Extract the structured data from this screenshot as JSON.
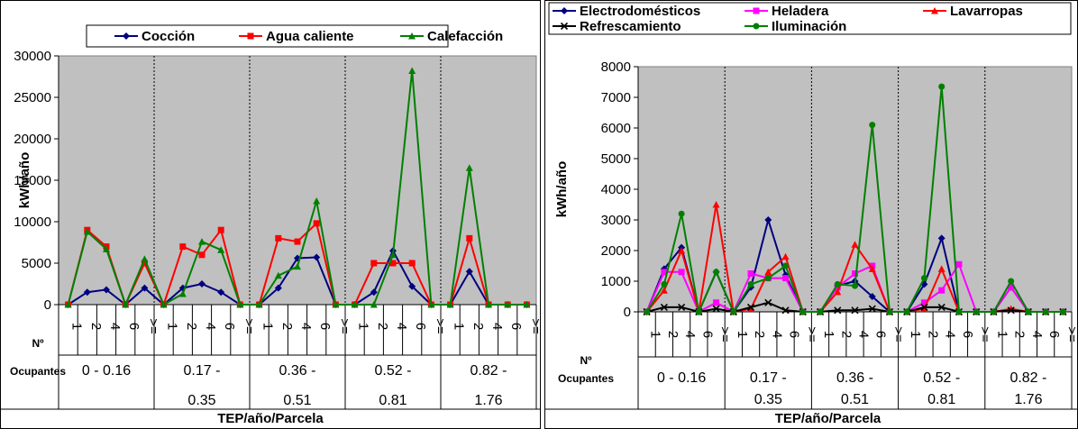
{
  "chart_data": [
    {
      "type": "line",
      "title": "",
      "xlabel": "TEP/año/Parcela",
      "ylabel": "kWh/año",
      "ylim": [
        0,
        30000
      ],
      "yticks": [
        0,
        5000,
        10000,
        15000,
        20000,
        25000,
        30000
      ],
      "legend_position": "top",
      "grid": false,
      "row_header_label_line1": "Nº",
      "row_header_label_line2": "Ocupantes",
      "categories": [
        "1",
        "2",
        "4",
        "6",
        ">=",
        "1",
        "2",
        "4",
        "6",
        ">=",
        "1",
        "2",
        "4",
        "6",
        ">=",
        "1",
        "2",
        "4",
        "6",
        ">=",
        "1",
        "2",
        "4",
        "6",
        ">="
      ],
      "groups": [
        {
          "label_line1": "0 - 0.16",
          "label_line2": ""
        },
        {
          "label_line1": "0.17 -",
          "label_line2": "0.35"
        },
        {
          "label_line1": "0.36 -",
          "label_line2": "0.51"
        },
        {
          "label_line1": "0.52 -",
          "label_line2": "0.81"
        },
        {
          "label_line1": "0.82 -",
          "label_line2": "1.76"
        }
      ],
      "series": [
        {
          "name": "Cocción",
          "color": "#000080",
          "marker": "diamond",
          "values": [
            0,
            1500,
            1800,
            0,
            2000,
            0,
            2000,
            2500,
            1500,
            0,
            0,
            2000,
            5600,
            5700,
            0,
            0,
            1500,
            6500,
            2200,
            0,
            0,
            4000,
            0,
            0,
            0
          ]
        },
        {
          "name": "Agua caliente",
          "color": "#ff0000",
          "marker": "square",
          "values": [
            0,
            9000,
            7000,
            0,
            5000,
            0,
            7000,
            6000,
            9000,
            0,
            0,
            8000,
            7600,
            9800,
            0,
            0,
            5000,
            5000,
            5000,
            0,
            0,
            8000,
            0,
            0,
            0
          ]
        },
        {
          "name": "Calefacción",
          "color": "#008000",
          "marker": "triangle",
          "values": [
            0,
            8800,
            6700,
            0,
            5500,
            0,
            1300,
            7600,
            6600,
            0,
            0,
            3500,
            4600,
            12500,
            0,
            0,
            0,
            6000,
            28200,
            0,
            0,
            16500,
            0,
            0,
            0
          ]
        }
      ]
    },
    {
      "type": "line",
      "title": "",
      "xlabel": "TEP/año/Parcela",
      "ylabel": "kWh/año",
      "ylim": [
        0,
        8000
      ],
      "yticks": [
        0,
        1000,
        2000,
        3000,
        4000,
        5000,
        6000,
        7000,
        8000
      ],
      "legend_position": "top",
      "grid": false,
      "row_header_label_line1": "Nº",
      "row_header_label_line2": "Ocupantes",
      "categories": [
        "1",
        "2",
        "4",
        "6",
        ">=",
        "1",
        "2",
        "4",
        "6",
        ">=",
        "1",
        "2",
        "4",
        "6",
        ">=",
        "1",
        "2",
        "4",
        "6",
        ">=",
        "1",
        "2",
        "4",
        "6",
        ">="
      ],
      "groups": [
        {
          "label_line1": "0 - 0.16",
          "label_line2": ""
        },
        {
          "label_line1": "0.17 -",
          "label_line2": "0.35"
        },
        {
          "label_line1": "0.36 -",
          "label_line2": "0.51"
        },
        {
          "label_line1": "0.52 -",
          "label_line2": "0.81"
        },
        {
          "label_line1": "0.82 -",
          "label_line2": "1.76"
        }
      ],
      "series": [
        {
          "name": "Electrodomésticos",
          "color": "#000080",
          "marker": "diamond",
          "values": [
            0,
            1400,
            2100,
            0,
            1300,
            0,
            800,
            3000,
            1200,
            0,
            0,
            850,
            1000,
            500,
            0,
            0,
            900,
            2400,
            0,
            0,
            0,
            800,
            0,
            0,
            0
          ]
        },
        {
          "name": "Heladera",
          "color": "#ff00ff",
          "marker": "square",
          "values": [
            0,
            1300,
            1300,
            0,
            300,
            0,
            1250,
            1100,
            1100,
            0,
            0,
            800,
            1250,
            1500,
            0,
            0,
            300,
            700,
            1550,
            0,
            0,
            800,
            0,
            0,
            0
          ]
        },
        {
          "name": "Lavarropas",
          "color": "#ff0000",
          "marker": "triangle",
          "values": [
            0,
            700,
            2000,
            0,
            3500,
            0,
            100,
            1300,
            1800,
            0,
            0,
            650,
            2200,
            1400,
            0,
            0,
            100,
            1400,
            0,
            0,
            0,
            100,
            0,
            0,
            0
          ]
        },
        {
          "name": "Refrescamiento",
          "color": "#000000",
          "marker": "x",
          "values": [
            0,
            150,
            150,
            0,
            100,
            0,
            150,
            300,
            50,
            0,
            0,
            50,
            50,
            100,
            0,
            0,
            150,
            150,
            0,
            0,
            0,
            50,
            0,
            0,
            0
          ]
        },
        {
          "name": "Iluminación",
          "color": "#008000",
          "marker": "circle",
          "values": [
            0,
            900,
            3200,
            0,
            1300,
            0,
            900,
            1100,
            1500,
            0,
            0,
            900,
            850,
            6100,
            0,
            0,
            1100,
            7350,
            0,
            0,
            0,
            1000,
            0,
            0,
            0
          ]
        }
      ]
    }
  ]
}
